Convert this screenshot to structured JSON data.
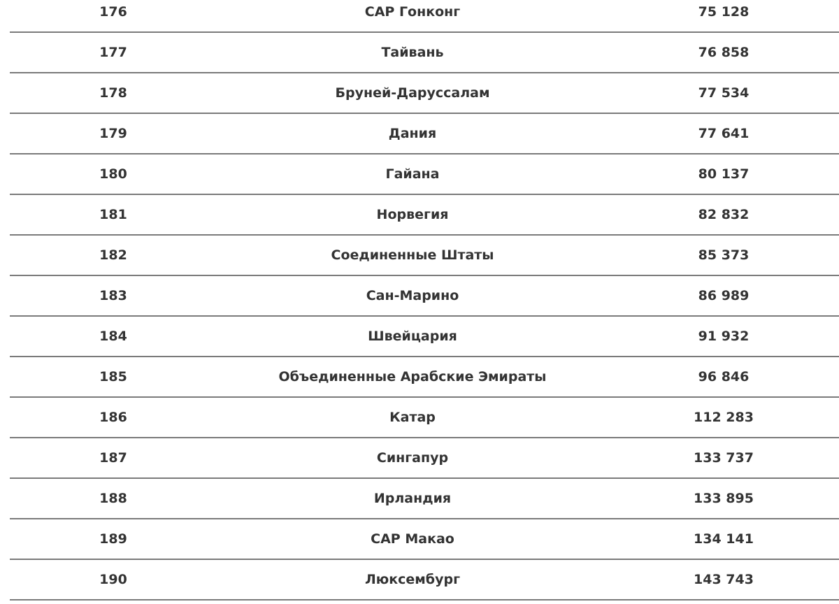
{
  "table": {
    "rows": [
      {
        "rank": "176",
        "country": "САР Гонконг",
        "value": "75 128"
      },
      {
        "rank": "177",
        "country": "Тайвань",
        "value": "76 858"
      },
      {
        "rank": "178",
        "country": "Бруней-Даруссалам",
        "value": "77 534"
      },
      {
        "rank": "179",
        "country": "Дания",
        "value": "77 641"
      },
      {
        "rank": "180",
        "country": "Гайана",
        "value": "80 137"
      },
      {
        "rank": "181",
        "country": "Норвегия",
        "value": "82 832"
      },
      {
        "rank": "182",
        "country": "Соединенные Штаты",
        "value": "85 373"
      },
      {
        "rank": "183",
        "country": "Сан-Марино",
        "value": "86 989"
      },
      {
        "rank": "184",
        "country": "Швейцария",
        "value": "91 932"
      },
      {
        "rank": "185",
        "country": "Объединенные Арабские Эмираты",
        "value": "96 846"
      },
      {
        "rank": "186",
        "country": "Катар",
        "value": "112 283"
      },
      {
        "rank": "187",
        "country": "Сингапур",
        "value": "133 737"
      },
      {
        "rank": "188",
        "country": "Ирландия",
        "value": "133 895"
      },
      {
        "rank": "189",
        "country": "САР Макао",
        "value": "134 141"
      },
      {
        "rank": "190",
        "country": "Люксембург",
        "value": "143 743"
      }
    ]
  }
}
